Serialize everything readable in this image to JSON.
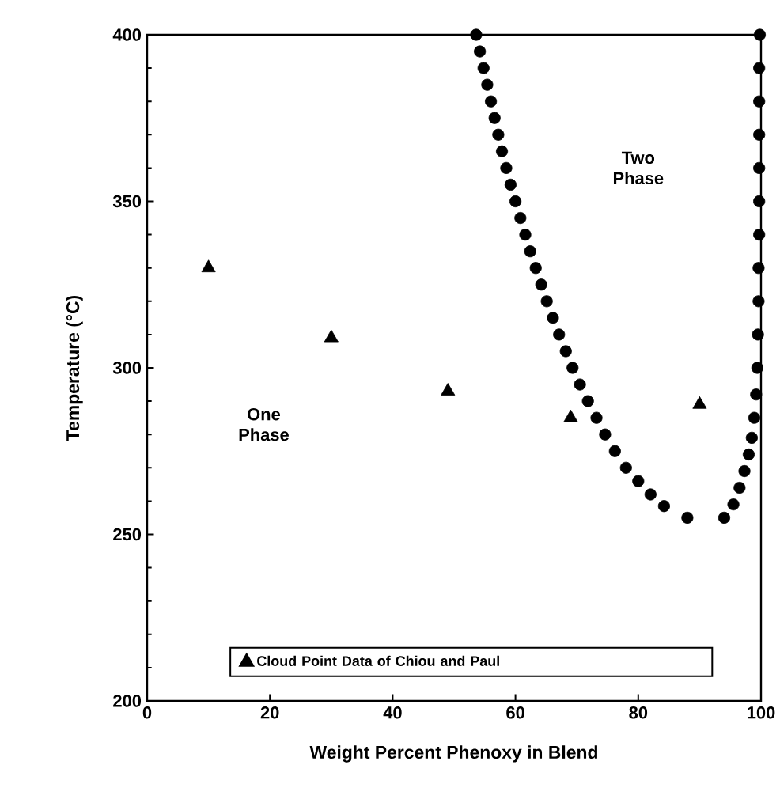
{
  "chart_data": {
    "type": "scatter",
    "xlabel": "Weight Percent Phenoxy in Blend",
    "ylabel": "Temperature (°C)",
    "xlim": [
      0,
      100
    ],
    "ylim": [
      200,
      400
    ],
    "xticks": [
      0,
      20,
      40,
      60,
      80,
      100
    ],
    "yticks": [
      200,
      250,
      300,
      350,
      400
    ],
    "legend": "bottom",
    "annotations": [
      "One Phase",
      "Two Phase"
    ],
    "series": [
      {
        "color": "#000000",
        "marker": "circle",
        "x": [
          53.6,
          54.2,
          54.8,
          55.4,
          56.0,
          56.6,
          57.2,
          57.8,
          58.5,
          59.2,
          60.0,
          60.8,
          61.6,
          62.4,
          63.3,
          64.2,
          65.1,
          66.1,
          67.1,
          68.2,
          69.3,
          70.5,
          71.8,
          73.2,
          74.6,
          76.2,
          78.0,
          80.0,
          82.0,
          84.2,
          88.0,
          94.0,
          95.5,
          96.5,
          97.3,
          98.0,
          98.5,
          98.9,
          99.2,
          99.4,
          99.5,
          99.6,
          99.6,
          99.7,
          99.7,
          99.7,
          99.7,
          99.7,
          99.7,
          99.8
        ],
        "values": [
          400,
          395,
          390,
          385,
          380,
          375,
          370,
          365,
          360,
          355,
          350,
          345,
          340,
          335,
          330,
          325,
          320,
          315,
          310,
          305,
          300,
          295,
          290,
          285,
          280,
          275,
          270,
          266,
          262,
          258.5,
          255,
          255,
          259,
          264,
          269,
          274,
          279,
          285,
          292,
          300,
          310,
          320,
          330,
          340,
          350,
          360,
          370,
          380,
          390,
          400
        ]
      },
      {
        "name": "Cloud Point Data of Chiou and Paul",
        "color": "#000000",
        "marker": "triangle",
        "x": [
          10,
          30,
          49,
          69,
          90
        ],
        "values": [
          330,
          309,
          293,
          285,
          289
        ]
      }
    ]
  }
}
